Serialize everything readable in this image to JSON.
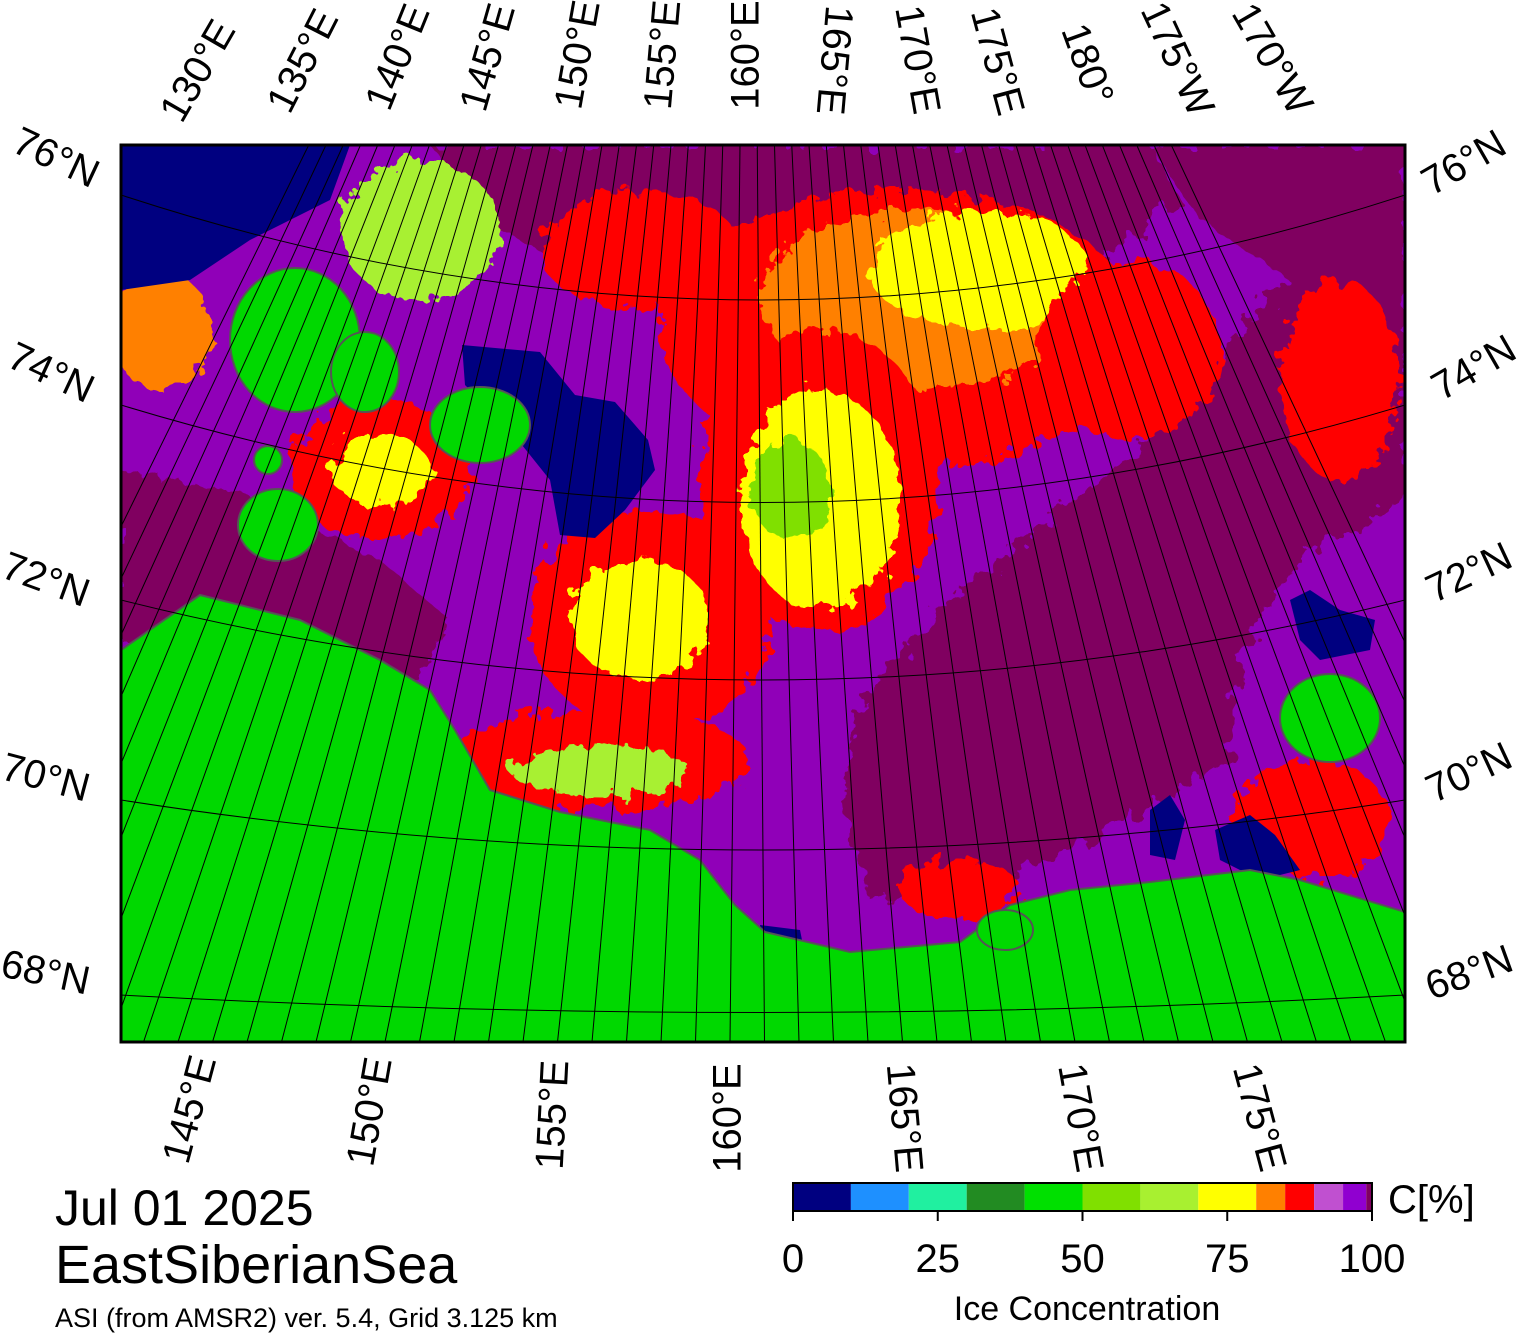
{
  "map": {
    "top_longitude_labels": [
      "130°E",
      "135°E",
      "140°E",
      "145°E",
      "150°E",
      "155°E",
      "160°E",
      "165°E",
      "170°E",
      "175°E",
      "180°",
      "175°W",
      "170°W"
    ],
    "bottom_longitude_labels": [
      "145°E",
      "150°E",
      "155°E",
      "160°E",
      "165°E",
      "170°E",
      "175°E"
    ],
    "left_latitude_labels": [
      "76°N",
      "74°N",
      "72°N",
      "70°N",
      "68°N"
    ],
    "right_latitude_labels": [
      "76°N",
      "74°N",
      "72°N",
      "70°N",
      "68°N"
    ]
  },
  "date": "Jul 01 2025",
  "region": "EastSiberianSea",
  "source": "ASI (from AMSR2) ver. 5.4,  Grid 3.125 km",
  "colorbar": {
    "title": "Ice Concentration",
    "unit_label": "C[%]",
    "lim": [
      0,
      100
    ],
    "ticks": [
      0,
      25,
      50,
      75,
      100
    ],
    "bins": [
      0,
      10,
      20,
      30,
      40,
      50,
      60,
      70,
      80,
      85,
      90,
      95,
      99,
      100
    ],
    "colors": [
      "#000080",
      "#1e90ff",
      "#20f0a0",
      "#228b22",
      "#00e000",
      "#80e000",
      "#a8f030",
      "#ffff00",
      "#ff8000",
      "#ff0000",
      "#c050d0",
      "#9000d0",
      "#800060"
    ]
  }
}
